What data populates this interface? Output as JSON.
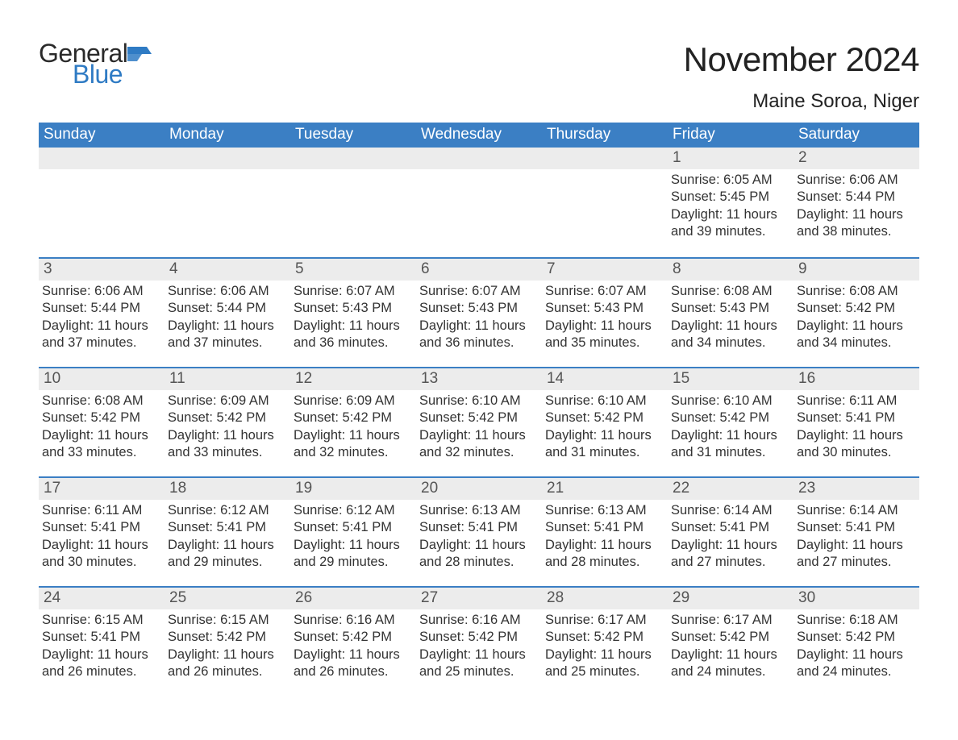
{
  "logo": {
    "word1": "General",
    "word2": "Blue",
    "flag_color": "#2f7bc4"
  },
  "title": "November 2024",
  "location": "Maine Soroa, Niger",
  "colors": {
    "header_bg": "#3b7fc4",
    "header_text": "#ffffff",
    "daynum_bg": "#ececec",
    "rule": "#3b7fc4",
    "body_text": "#333333"
  },
  "weekdays": [
    "Sunday",
    "Monday",
    "Tuesday",
    "Wednesday",
    "Thursday",
    "Friday",
    "Saturday"
  ],
  "weeks": [
    [
      null,
      null,
      null,
      null,
      null,
      {
        "n": "1",
        "sr": "Sunrise: 6:05 AM",
        "ss": "Sunset: 5:45 PM",
        "dl": "Daylight: 11 hours and 39 minutes."
      },
      {
        "n": "2",
        "sr": "Sunrise: 6:06 AM",
        "ss": "Sunset: 5:44 PM",
        "dl": "Daylight: 11 hours and 38 minutes."
      }
    ],
    [
      {
        "n": "3",
        "sr": "Sunrise: 6:06 AM",
        "ss": "Sunset: 5:44 PM",
        "dl": "Daylight: 11 hours and 37 minutes."
      },
      {
        "n": "4",
        "sr": "Sunrise: 6:06 AM",
        "ss": "Sunset: 5:44 PM",
        "dl": "Daylight: 11 hours and 37 minutes."
      },
      {
        "n": "5",
        "sr": "Sunrise: 6:07 AM",
        "ss": "Sunset: 5:43 PM",
        "dl": "Daylight: 11 hours and 36 minutes."
      },
      {
        "n": "6",
        "sr": "Sunrise: 6:07 AM",
        "ss": "Sunset: 5:43 PM",
        "dl": "Daylight: 11 hours and 36 minutes."
      },
      {
        "n": "7",
        "sr": "Sunrise: 6:07 AM",
        "ss": "Sunset: 5:43 PM",
        "dl": "Daylight: 11 hours and 35 minutes."
      },
      {
        "n": "8",
        "sr": "Sunrise: 6:08 AM",
        "ss": "Sunset: 5:43 PM",
        "dl": "Daylight: 11 hours and 34 minutes."
      },
      {
        "n": "9",
        "sr": "Sunrise: 6:08 AM",
        "ss": "Sunset: 5:42 PM",
        "dl": "Daylight: 11 hours and 34 minutes."
      }
    ],
    [
      {
        "n": "10",
        "sr": "Sunrise: 6:08 AM",
        "ss": "Sunset: 5:42 PM",
        "dl": "Daylight: 11 hours and 33 minutes."
      },
      {
        "n": "11",
        "sr": "Sunrise: 6:09 AM",
        "ss": "Sunset: 5:42 PM",
        "dl": "Daylight: 11 hours and 33 minutes."
      },
      {
        "n": "12",
        "sr": "Sunrise: 6:09 AM",
        "ss": "Sunset: 5:42 PM",
        "dl": "Daylight: 11 hours and 32 minutes."
      },
      {
        "n": "13",
        "sr": "Sunrise: 6:10 AM",
        "ss": "Sunset: 5:42 PM",
        "dl": "Daylight: 11 hours and 32 minutes."
      },
      {
        "n": "14",
        "sr": "Sunrise: 6:10 AM",
        "ss": "Sunset: 5:42 PM",
        "dl": "Daylight: 11 hours and 31 minutes."
      },
      {
        "n": "15",
        "sr": "Sunrise: 6:10 AM",
        "ss": "Sunset: 5:42 PM",
        "dl": "Daylight: 11 hours and 31 minutes."
      },
      {
        "n": "16",
        "sr": "Sunrise: 6:11 AM",
        "ss": "Sunset: 5:41 PM",
        "dl": "Daylight: 11 hours and 30 minutes."
      }
    ],
    [
      {
        "n": "17",
        "sr": "Sunrise: 6:11 AM",
        "ss": "Sunset: 5:41 PM",
        "dl": "Daylight: 11 hours and 30 minutes."
      },
      {
        "n": "18",
        "sr": "Sunrise: 6:12 AM",
        "ss": "Sunset: 5:41 PM",
        "dl": "Daylight: 11 hours and 29 minutes."
      },
      {
        "n": "19",
        "sr": "Sunrise: 6:12 AM",
        "ss": "Sunset: 5:41 PM",
        "dl": "Daylight: 11 hours and 29 minutes."
      },
      {
        "n": "20",
        "sr": "Sunrise: 6:13 AM",
        "ss": "Sunset: 5:41 PM",
        "dl": "Daylight: 11 hours and 28 minutes."
      },
      {
        "n": "21",
        "sr": "Sunrise: 6:13 AM",
        "ss": "Sunset: 5:41 PM",
        "dl": "Daylight: 11 hours and 28 minutes."
      },
      {
        "n": "22",
        "sr": "Sunrise: 6:14 AM",
        "ss": "Sunset: 5:41 PM",
        "dl": "Daylight: 11 hours and 27 minutes."
      },
      {
        "n": "23",
        "sr": "Sunrise: 6:14 AM",
        "ss": "Sunset: 5:41 PM",
        "dl": "Daylight: 11 hours and 27 minutes."
      }
    ],
    [
      {
        "n": "24",
        "sr": "Sunrise: 6:15 AM",
        "ss": "Sunset: 5:41 PM",
        "dl": "Daylight: 11 hours and 26 minutes."
      },
      {
        "n": "25",
        "sr": "Sunrise: 6:15 AM",
        "ss": "Sunset: 5:42 PM",
        "dl": "Daylight: 11 hours and 26 minutes."
      },
      {
        "n": "26",
        "sr": "Sunrise: 6:16 AM",
        "ss": "Sunset: 5:42 PM",
        "dl": "Daylight: 11 hours and 26 minutes."
      },
      {
        "n": "27",
        "sr": "Sunrise: 6:16 AM",
        "ss": "Sunset: 5:42 PM",
        "dl": "Daylight: 11 hours and 25 minutes."
      },
      {
        "n": "28",
        "sr": "Sunrise: 6:17 AM",
        "ss": "Sunset: 5:42 PM",
        "dl": "Daylight: 11 hours and 25 minutes."
      },
      {
        "n": "29",
        "sr": "Sunrise: 6:17 AM",
        "ss": "Sunset: 5:42 PM",
        "dl": "Daylight: 11 hours and 24 minutes."
      },
      {
        "n": "30",
        "sr": "Sunrise: 6:18 AM",
        "ss": "Sunset: 5:42 PM",
        "dl": "Daylight: 11 hours and 24 minutes."
      }
    ]
  ]
}
